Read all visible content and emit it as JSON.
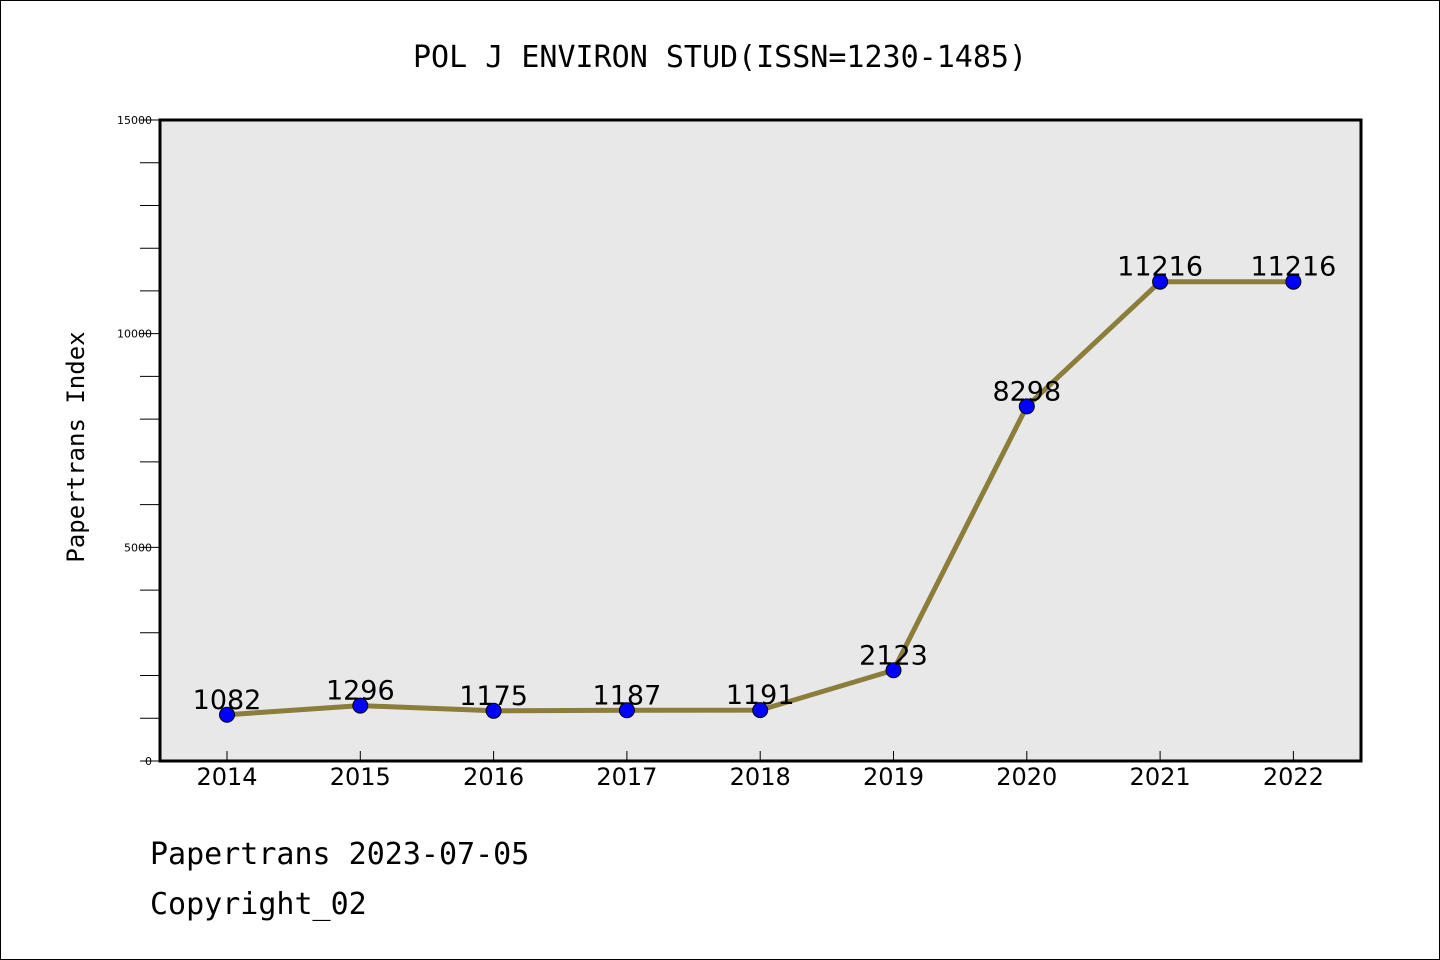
{
  "chart_data": {
    "type": "line",
    "title": "POL J ENVIRON STUD(ISSN=1230-1485)",
    "xlabel": "",
    "ylabel": "Papertrans Index",
    "x": [
      "2014",
      "2015",
      "2016",
      "2017",
      "2018",
      "2019",
      "2020",
      "2021",
      "2022"
    ],
    "series": [
      {
        "values": [
          1082,
          1296,
          1175,
          1187,
          1191,
          2123,
          8298,
          11216,
          11216
        ],
        "line_color": "#8b7d3a",
        "marker_color": "#0000ff"
      }
    ],
    "data_labels": [
      "1082",
      "1296",
      "1175",
      "1187",
      "1191",
      "2123",
      "8298",
      "11216",
      "11216"
    ],
    "ylim": [
      0,
      15000
    ],
    "yticks": [
      0,
      5000,
      10000,
      15000
    ],
    "ytick_labels": [
      "0",
      "5000",
      "10000",
      "15000"
    ],
    "y_minor_step": 1000,
    "plot_background": "#e8e8e8",
    "grid": false,
    "legend": "none"
  },
  "footer": {
    "line1": "Papertrans 2023-07-05",
    "line2": "Copyright_02"
  }
}
